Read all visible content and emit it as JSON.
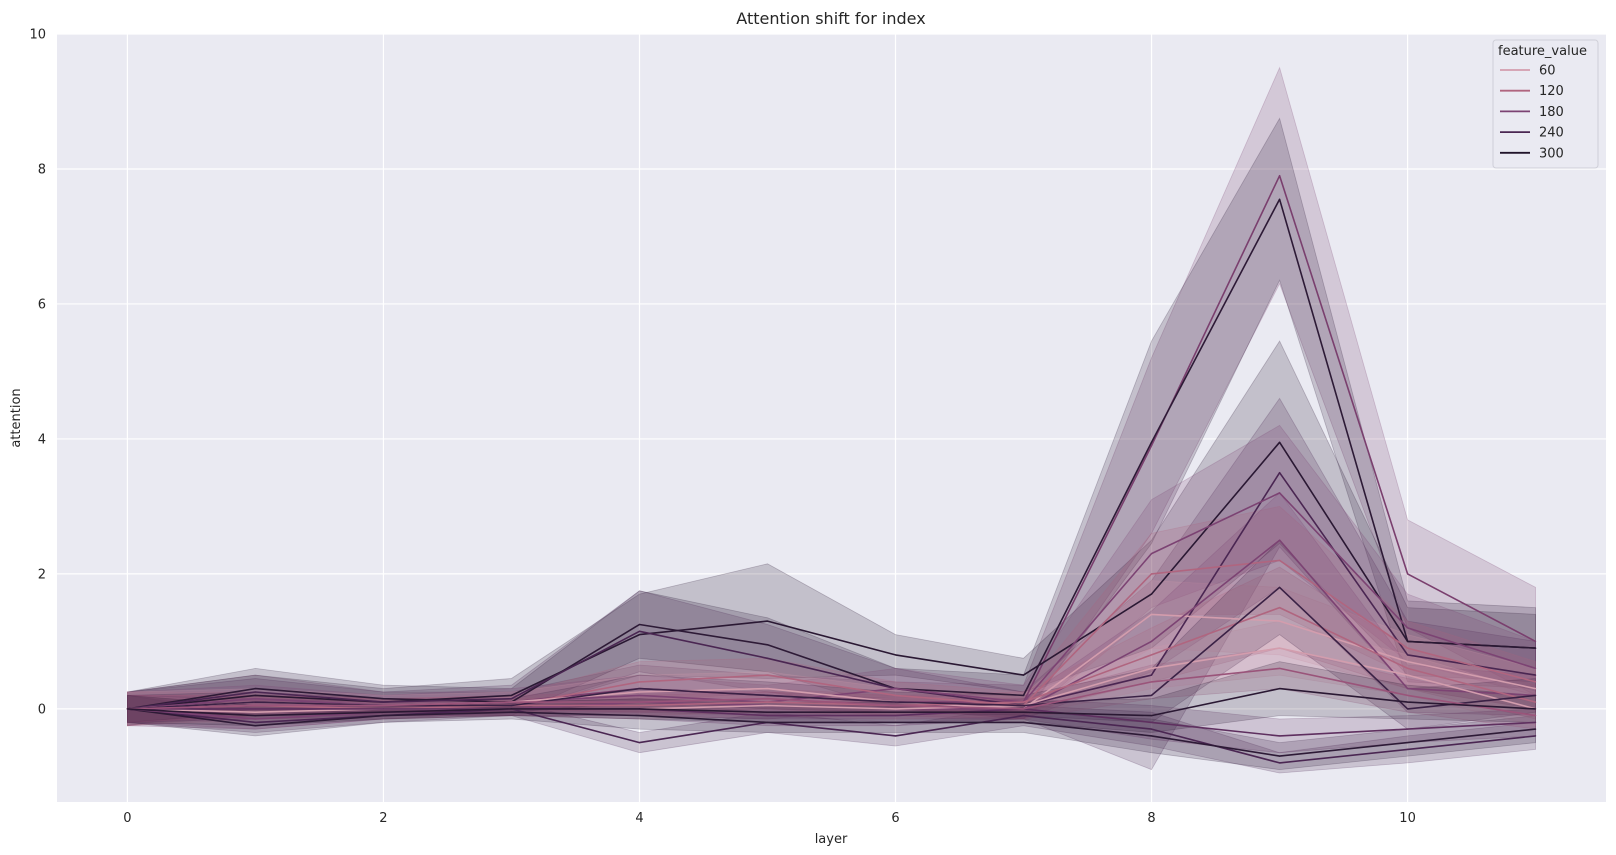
{
  "chart_data": {
    "type": "line",
    "title": "Attention shift for index",
    "xlabel": "layer",
    "ylabel": "attention",
    "xlim": [
      -0.55,
      11.55
    ],
    "ylim": [
      -1.38,
      10.0
    ],
    "xticks": [
      0,
      2,
      4,
      6,
      8,
      10
    ],
    "yticks": [
      0,
      2,
      4,
      6,
      8,
      10
    ],
    "grid": true,
    "background": "#eaeaf2",
    "legend": {
      "title": "feature_value",
      "placement": "top-right",
      "entries": [
        {
          "label": "60",
          "color": "#d39dad"
        },
        {
          "label": "120",
          "color": "#b0657f"
        },
        {
          "label": "180",
          "color": "#7c4373"
        },
        {
          "label": "240",
          "color": "#4a2652"
        },
        {
          "label": "300",
          "color": "#21142b"
        }
      ]
    },
    "x": [
      0,
      1,
      2,
      3,
      4,
      5,
      6,
      7,
      8,
      9,
      10,
      11
    ],
    "series": [
      {
        "color": "#7a3f6e",
        "values": [
          0,
          0.1,
          0.05,
          0.1,
          0.3,
          0.2,
          0.1,
          0.1,
          3.9,
          7.9,
          2.0,
          1.0
        ],
        "band": [
          0.25,
          0.4,
          0.2,
          0.15,
          0.35,
          0.3,
          0.3,
          0.25,
          1.3,
          1.6,
          0.8,
          0.8
        ]
      },
      {
        "color": "#2d1a36",
        "values": [
          0,
          0.3,
          0.15,
          0.1,
          1.25,
          0.95,
          0.3,
          0.2,
          3.95,
          7.55,
          1.0,
          0.9
        ],
        "band": [
          0.25,
          0.3,
          0.2,
          0.2,
          0.5,
          0.4,
          0.3,
          0.3,
          1.5,
          1.2,
          0.6,
          0.6
        ]
      },
      {
        "color": "#2a1833",
        "values": [
          0,
          0.2,
          0.1,
          0.2,
          1.1,
          1.3,
          0.8,
          0.5,
          1.7,
          3.95,
          1.0,
          0.9
        ],
        "band": [
          0.25,
          0.3,
          0.2,
          0.25,
          0.6,
          0.85,
          0.3,
          0.25,
          0.8,
          1.5,
          0.5,
          0.5
        ]
      },
      {
        "color": "#4a2652",
        "values": [
          0,
          0.25,
          0.1,
          0.15,
          1.15,
          0.75,
          0.3,
          0.05,
          0.5,
          3.5,
          0.8,
          0.5
        ],
        "band": [
          0.25,
          0.2,
          0.15,
          0.2,
          0.6,
          0.5,
          0.3,
          0.2,
          1.4,
          1.1,
          0.5,
          0.5
        ]
      },
      {
        "color": "#7c4373",
        "values": [
          0,
          0.15,
          0.05,
          0.1,
          0.2,
          0.1,
          0.3,
          0.1,
          2.3,
          3.2,
          1.2,
          0.6
        ],
        "band": [
          0.25,
          0.2,
          0.15,
          0.2,
          0.3,
          0.25,
          0.3,
          0.25,
          0.8,
          1.0,
          0.5,
          0.4
        ]
      },
      {
        "color": "#b0657f",
        "values": [
          0,
          0.05,
          0.0,
          0.05,
          0.4,
          0.5,
          0.2,
          0.05,
          2.0,
          2.2,
          0.9,
          0.4
        ],
        "band": [
          0.25,
          0.2,
          0.15,
          0.15,
          0.3,
          0.25,
          0.2,
          0.2,
          0.6,
          0.8,
          0.4,
          0.3
        ]
      },
      {
        "color": "#d39dad",
        "values": [
          0,
          0.1,
          0.05,
          0.1,
          0.25,
          0.3,
          0.1,
          0.0,
          1.4,
          1.3,
          0.7,
          0.3
        ],
        "band": [
          0.25,
          0.2,
          0.15,
          0.15,
          0.25,
          0.25,
          0.2,
          0.2,
          0.5,
          0.5,
          0.4,
          0.3
        ]
      },
      {
        "color": "#4a2652",
        "values": [
          0,
          -0.2,
          -0.1,
          0.0,
          -0.5,
          -0.2,
          -0.4,
          -0.1,
          -0.3,
          -0.8,
          -0.6,
          -0.4
        ],
        "band": [
          0.2,
          0.15,
          0.1,
          0.1,
          0.15,
          0.15,
          0.15,
          0.15,
          0.25,
          0.15,
          0.2,
          0.2
        ]
      },
      {
        "color": "#2d1a36",
        "values": [
          0,
          -0.25,
          -0.1,
          -0.05,
          -0.1,
          -0.2,
          -0.2,
          -0.2,
          -0.4,
          -0.7,
          -0.5,
          -0.3
        ],
        "band": [
          0.2,
          0.15,
          0.1,
          0.1,
          0.2,
          0.15,
          0.15,
          0.15,
          0.25,
          0.2,
          0.2,
          0.2
        ]
      },
      {
        "color": "#7c4373",
        "values": [
          0,
          -0.15,
          -0.05,
          0.0,
          0.1,
          0.05,
          0.0,
          0.0,
          1.0,
          2.5,
          0.3,
          0.2
        ],
        "band": [
          0.2,
          0.15,
          0.1,
          0.1,
          0.2,
          0.2,
          0.15,
          0.15,
          0.45,
          0.7,
          0.35,
          0.3
        ]
      },
      {
        "color": "#b0657f",
        "values": [
          0,
          0.05,
          0.05,
          0.05,
          0.05,
          0.1,
          0.05,
          0.1,
          0.8,
          1.5,
          0.6,
          0.1
        ],
        "band": [
          0.2,
          0.15,
          0.1,
          0.1,
          0.15,
          0.15,
          0.15,
          0.15,
          0.4,
          0.6,
          0.3,
          0.25
        ]
      },
      {
        "color": "#d39dad",
        "values": [
          0,
          -0.05,
          0.0,
          0.0,
          0.0,
          0.05,
          0.0,
          0.05,
          0.6,
          0.9,
          0.5,
          0.0
        ],
        "band": [
          0.2,
          0.15,
          0.1,
          0.1,
          0.15,
          0.15,
          0.15,
          0.15,
          0.3,
          0.4,
          0.3,
          0.25
        ]
      },
      {
        "color": "#3a2145",
        "values": [
          0,
          0.1,
          0.05,
          0.05,
          0.3,
          0.2,
          0.1,
          0.05,
          0.2,
          1.8,
          0.0,
          0.2
        ],
        "band": [
          0.2,
          0.15,
          0.1,
          0.1,
          0.2,
          0.2,
          0.15,
          0.15,
          0.4,
          0.7,
          0.3,
          0.25
        ]
      },
      {
        "color": "#5e2f5f",
        "values": [
          0,
          0.0,
          0.0,
          0.0,
          0.0,
          -0.1,
          -0.1,
          0.0,
          -0.2,
          -0.4,
          -0.3,
          -0.2
        ],
        "band": [
          0.2,
          0.15,
          0.1,
          0.1,
          0.15,
          0.15,
          0.15,
          0.15,
          0.25,
          0.25,
          0.2,
          0.2
        ]
      },
      {
        "color": "#9a547a",
        "values": [
          0,
          0.05,
          0.05,
          0.1,
          0.1,
          0.15,
          0.05,
          0.0,
          0.4,
          0.6,
          0.2,
          -0.1
        ],
        "band": [
          0.2,
          0.15,
          0.1,
          0.1,
          0.15,
          0.15,
          0.15,
          0.15,
          0.25,
          0.3,
          0.25,
          0.2
        ]
      },
      {
        "color": "#2a1833",
        "values": [
          0,
          -0.1,
          -0.05,
          0.0,
          0.0,
          -0.05,
          -0.05,
          -0.05,
          -0.1,
          0.3,
          0.1,
          0.0
        ],
        "band": [
          0.2,
          0.15,
          0.1,
          0.1,
          0.15,
          0.15,
          0.15,
          0.15,
          0.25,
          0.4,
          0.25,
          0.2
        ]
      }
    ]
  }
}
